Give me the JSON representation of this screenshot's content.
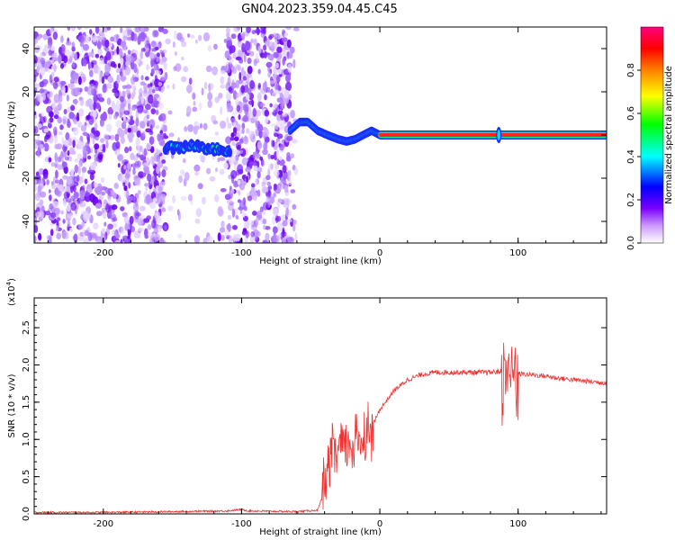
{
  "title": "GN04.2023.359.04.45.C45",
  "chart_data": [
    {
      "type": "heatmap",
      "xlabel": "Height of straight line (km)",
      "ylabel": "Frequency (Hz)",
      "xlim": [
        -250,
        164
      ],
      "ylim": [
        -50,
        50
      ],
      "x_ticks": [
        -200,
        -100,
        0,
        100
      ],
      "x_tick_labels": [
        "-200",
        "-100",
        "0",
        "100"
      ],
      "y_ticks": [
        -40,
        -20,
        0,
        20,
        40
      ],
      "y_tick_labels": [
        "-40",
        "-20",
        "0",
        "20",
        "40"
      ],
      "noise_regions": [
        [
          -250,
          -155
        ],
        [
          -110,
          -65
        ]
      ],
      "sparse_region": [
        -155,
        -110
      ],
      "ridge_track": {
        "x": [
          -155,
          -145,
          -135,
          -125,
          -115,
          -108,
          -65,
          -58,
          -52,
          -45,
          -38,
          -30,
          -24,
          -18,
          -12,
          -6,
          0,
          164
        ],
        "y": [
          -6,
          -6,
          -5,
          -6,
          -7,
          -8,
          2,
          6,
          6,
          2,
          0,
          -2,
          -3,
          -2,
          0,
          2,
          0,
          0
        ]
      },
      "spike_x": 86,
      "colorbar": {
        "label": "Normalized spectral amplitude",
        "range": [
          0,
          1
        ],
        "ticks": [
          0.0,
          0.2,
          0.4,
          0.6,
          0.8
        ],
        "tick_labels": [
          "0.0",
          "0.2",
          "0.4",
          "0.6",
          "0.8"
        ],
        "colors": [
          "#ffffff",
          "#cc99ff",
          "#7a00ff",
          "#0000ff",
          "#00ffff",
          "#00ff00",
          "#ffff00",
          "#ff8000",
          "#ff0000",
          "#ff0080"
        ]
      }
    },
    {
      "type": "line",
      "xlabel": "Height of straight line (km)",
      "ylabel": "SNR (10 * v/v)",
      "y_multiplier_label": "(x10",
      "y_multiplier_exp": "4",
      "y_multiplier_close": ")",
      "xlim": [
        -250,
        164
      ],
      "ylim": [
        0,
        2.9
      ],
      "x_ticks": [
        -200,
        -100,
        0,
        100
      ],
      "x_tick_labels": [
        "-200",
        "-100",
        "0",
        "100"
      ],
      "y_ticks": [
        0.0,
        0.5,
        1.0,
        1.5,
        2.0,
        2.5
      ],
      "y_tick_labels": [
        "0.0",
        "0.5",
        "1.0",
        "1.5",
        "2.0",
        "2.5"
      ],
      "series": [
        {
          "color": "#ee3333",
          "x": [
            -250,
            -200,
            -150,
            -110,
            -100,
            -95,
            -60,
            -45,
            -40,
            -35,
            -30,
            -25,
            -20,
            -15,
            -10,
            -5,
            0,
            10,
            20,
            30,
            40,
            50,
            60,
            70,
            80,
            90,
            92,
            95,
            97,
            100,
            110,
            120,
            130,
            140,
            150,
            164
          ],
          "y": [
            0.02,
            0.02,
            0.03,
            0.04,
            0.06,
            0.04,
            0.03,
            0.05,
            0.3,
            0.75,
            0.85,
            0.9,
            0.95,
            1.0,
            1.05,
            1.2,
            1.4,
            1.65,
            1.8,
            1.87,
            1.9,
            1.9,
            1.9,
            1.9,
            1.9,
            1.92,
            1.95,
            1.9,
            1.9,
            1.88,
            1.87,
            1.85,
            1.82,
            1.8,
            1.78,
            1.76
          ]
        }
      ],
      "bursts": [
        {
          "x": [
            -42,
            -5
          ],
          "amp": 0.55
        },
        {
          "x": [
            88,
            100
          ],
          "amp": 0.85
        }
      ]
    }
  ]
}
